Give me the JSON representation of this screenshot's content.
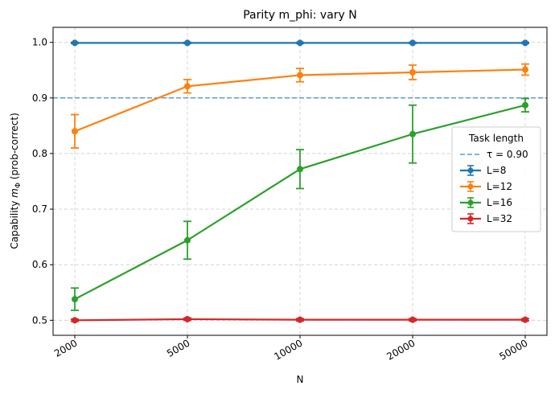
{
  "chart_data": {
    "type": "line",
    "title": "Parity m_phi: vary N",
    "xlabel": "N",
    "ylabel_prefix": "Capability ",
    "ylabel_symbol": "m",
    "ylabel_subscript": "Φ",
    "ylabel_suffix": " (prob-correct)",
    "categories": [
      "2000",
      "5000",
      "10000",
      "20000",
      "50000"
    ],
    "ylim": [
      0.473,
      1.027
    ],
    "yticks": [
      "0.5",
      "0.6",
      "0.7",
      "0.8",
      "0.9",
      "1.0"
    ],
    "grid": true,
    "legend": {
      "title": "Task length",
      "placement": "center-right",
      "threshold_label": "τ = 0.90"
    },
    "threshold": {
      "value": 0.9,
      "color": "#5a9fd4"
    },
    "series": [
      {
        "name": "L=8",
        "color": "#1f77b4",
        "values": [
          0.999,
          0.999,
          0.999,
          0.999,
          0.999
        ],
        "err": [
          0.001,
          0.001,
          0.001,
          0.001,
          0.001
        ]
      },
      {
        "name": "L=12",
        "color": "#ff7f0e",
        "values": [
          0.84,
          0.921,
          0.941,
          0.946,
          0.951
        ],
        "err": [
          0.03,
          0.012,
          0.012,
          0.013,
          0.01
        ]
      },
      {
        "name": "L=16",
        "color": "#2ca02c",
        "values": [
          0.538,
          0.644,
          0.772,
          0.835,
          0.887
        ],
        "err": [
          0.02,
          0.034,
          0.035,
          0.052,
          0.012
        ]
      },
      {
        "name": "L=32",
        "color": "#d62728",
        "values": [
          0.5,
          0.502,
          0.501,
          0.501,
          0.501
        ],
        "err": [
          0.002,
          0.002,
          0.002,
          0.002,
          0.002
        ]
      }
    ]
  }
}
